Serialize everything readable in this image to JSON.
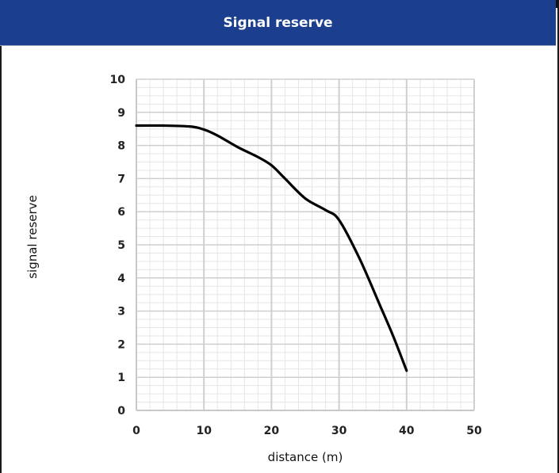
{
  "chart_data": {
    "type": "line",
    "title": "Signal reserve",
    "xlabel": "distance (m)",
    "ylabel": "signal reserve",
    "xlim": [
      0,
      50
    ],
    "ylim": [
      0,
      10
    ],
    "x_ticks": [
      "0",
      "10",
      "20",
      "30",
      "40",
      "50"
    ],
    "y_ticks": [
      "0",
      "1",
      "2",
      "3",
      "4",
      "5",
      "6",
      "7",
      "8",
      "9",
      "10"
    ],
    "grid": true,
    "series": [
      {
        "color": "#000000",
        "x": [
          0,
          4,
          8,
          10,
          12,
          15,
          18,
          20,
          22,
          25,
          28,
          30,
          33,
          36,
          38,
          40
        ],
        "y": [
          8.6,
          8.6,
          8.57,
          8.48,
          8.3,
          7.95,
          7.65,
          7.4,
          7.0,
          6.4,
          6.05,
          5.75,
          4.6,
          3.2,
          2.25,
          1.2
        ]
      }
    ]
  },
  "colors": {
    "header": "#1b3f8e",
    "grid_major": "#cfcfcf",
    "grid_minor": "#e6e6e6",
    "line": "#000000"
  }
}
